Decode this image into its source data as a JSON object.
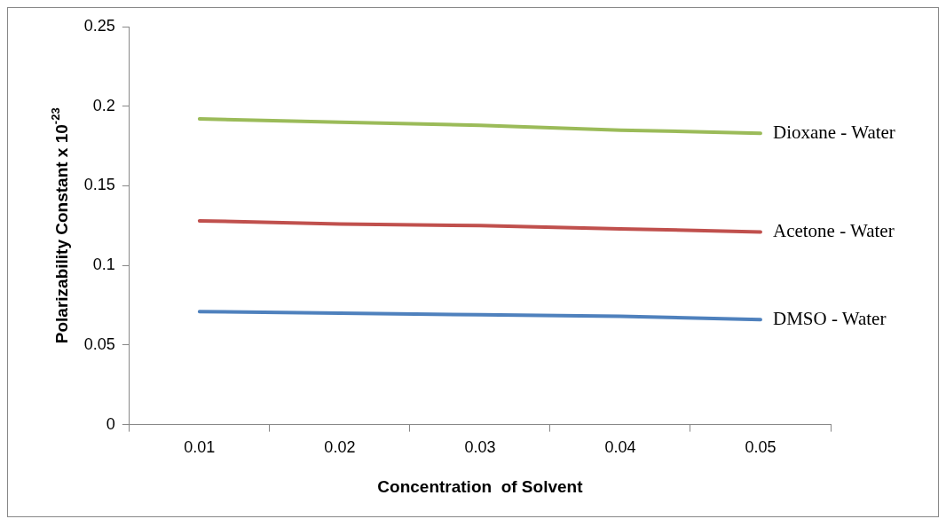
{
  "chart_data": {
    "type": "line",
    "xlabel": "Concentration  of Solvent",
    "ylabel": "Polarizability Constant x 10$^{-23}$",
    "categories": [
      "0.01",
      "0.02",
      "0.03",
      "0.04",
      "0.05"
    ],
    "series": [
      {
        "name": "DMSO - Water",
        "color": "#4f81bd",
        "values": [
          0.071,
          0.07,
          0.069,
          0.068,
          0.066
        ]
      },
      {
        "name": "Acetone - Water",
        "color": "#c0504d",
        "values": [
          0.128,
          0.126,
          0.125,
          0.123,
          0.121
        ]
      },
      {
        "name": "Dioxane - Water",
        "color": "#9bbb59",
        "values": [
          0.192,
          0.19,
          0.188,
          0.185,
          0.183
        ]
      }
    ],
    "ylim": [
      0,
      0.25
    ],
    "yticks": [
      0,
      0.05,
      0.1,
      0.15,
      0.2,
      0.25
    ],
    "grid": false,
    "legend": false,
    "marker": "none",
    "line_style": "solid"
  }
}
